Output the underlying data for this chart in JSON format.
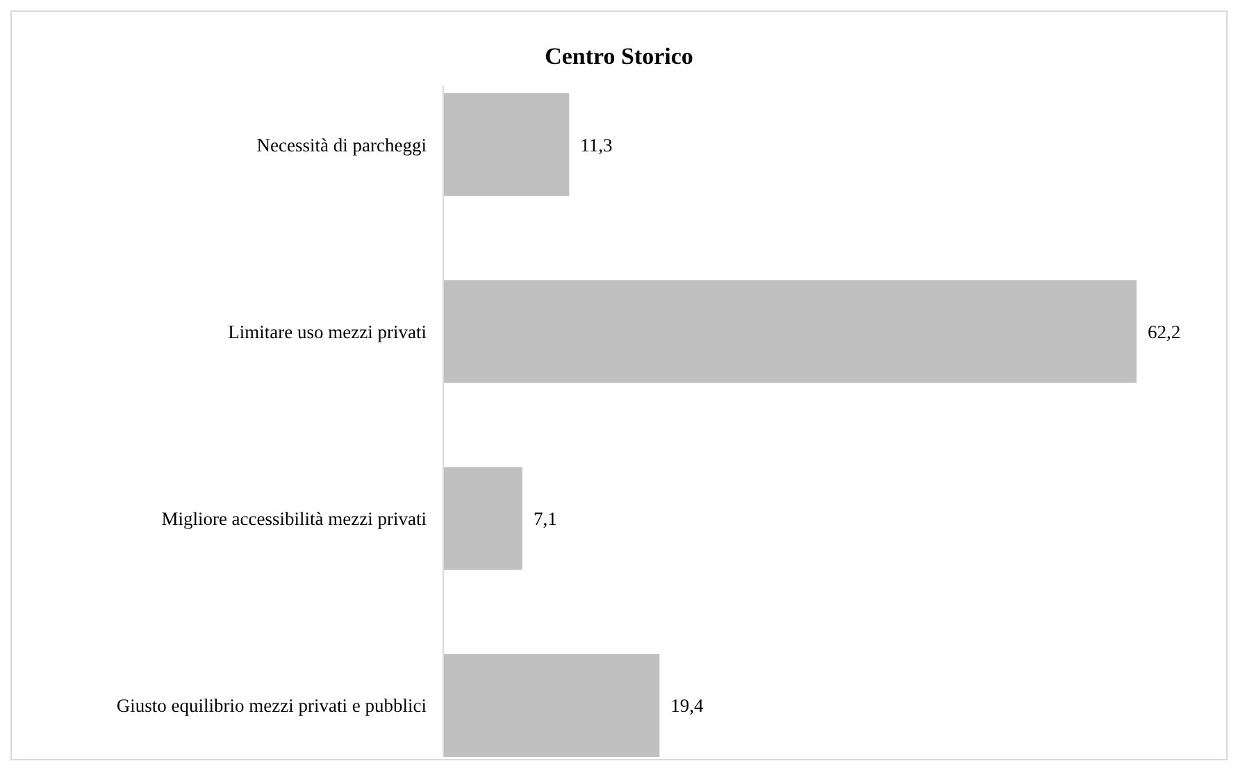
{
  "chart_data": {
    "type": "bar",
    "orientation": "horizontal",
    "title": "Centro Storico",
    "categories": [
      "Necessità di parcheggi",
      "Limitare uso mezzi privati",
      "Migliore accessibilità mezzi privati",
      "Giusto equilibrio mezzi privati e pubblici"
    ],
    "values": [
      11.3,
      62.2,
      7.1,
      19.4
    ],
    "value_labels": [
      "11,3",
      "62,2",
      "7,1",
      "19,4"
    ],
    "color": "#c0c0c0"
  }
}
